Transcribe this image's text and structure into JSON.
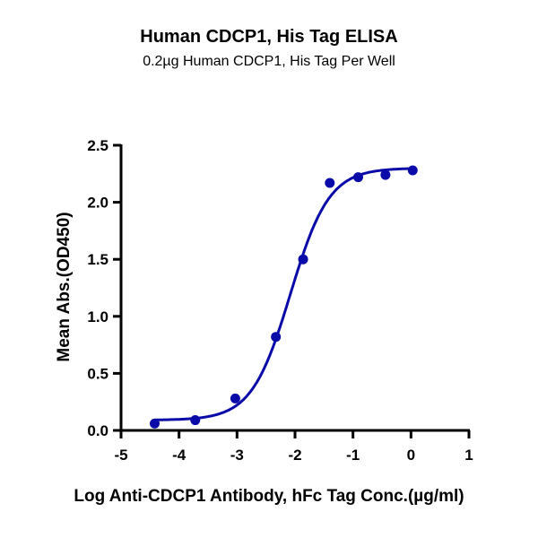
{
  "chart_data": {
    "type": "scatter",
    "title": "Human CDCP1, His Tag ELISA",
    "subtitle": "0.2µg Human CDCP1, His Tag Per Well",
    "xlabel": "Log Anti-CDCP1 Antibody, hFc Tag Conc.(µg/ml)",
    "ylabel": "Mean Abs.(OD450)",
    "xlim": [
      -5,
      1
    ],
    "ylim": [
      0,
      2.5
    ],
    "xticks": [
      "-5",
      "-4",
      "-3",
      "-2",
      "-1",
      "0",
      "1"
    ],
    "yticks": [
      "0.0",
      "0.5",
      "1.0",
      "1.5",
      "2.0",
      "2.5"
    ],
    "grid": false,
    "series": [
      {
        "name": "Human CDCP1, His Tag",
        "color": "#0a0aa8",
        "x": [
          -4.42,
          -3.72,
          -3.03,
          -2.33,
          -1.86,
          -1.4,
          -0.91,
          -0.44,
          0.03
        ],
        "y": [
          0.06,
          0.09,
          0.28,
          0.82,
          1.5,
          2.17,
          2.22,
          2.24,
          2.28
        ],
        "fit": {
          "model": "4PL",
          "bottom": 0.09,
          "top": 2.3,
          "logEC50": -2.08,
          "hill": 1.3
        }
      }
    ]
  }
}
